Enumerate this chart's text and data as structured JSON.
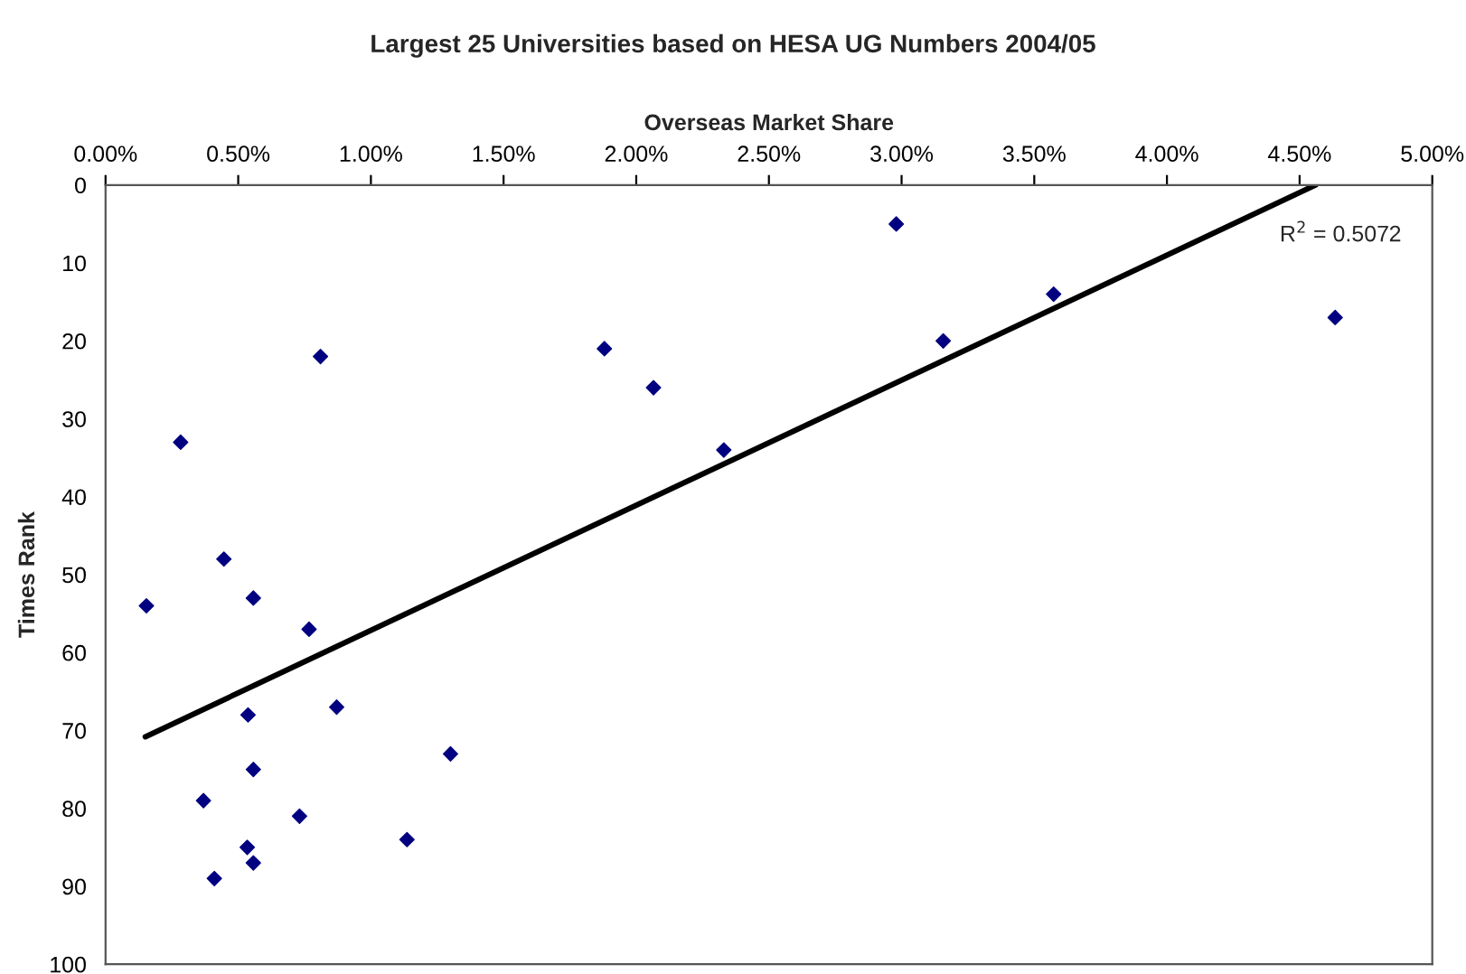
{
  "chart_data": {
    "type": "scatter",
    "title": "Largest 25 Universities based on HESA UG Numbers 2004/05",
    "xlabel": "Overseas Market Share",
    "ylabel": "Times Rank",
    "series": [
      {
        "color": "#000080",
        "marker": "diamond",
        "x": [
          0.81,
          0.283,
          0.446,
          0.154,
          0.557,
          0.767,
          0.537,
          0.871,
          1.3,
          0.557,
          0.369,
          0.731,
          1.136,
          0.534,
          0.557,
          0.41,
          1.88,
          2.065,
          2.33,
          2.98,
          3.157,
          3.573,
          4.634
        ],
        "values": [
          22,
          33,
          48,
          54,
          53,
          57,
          68,
          67,
          73,
          75,
          79,
          81,
          84,
          85,
          87,
          89,
          21,
          26,
          34,
          5,
          20,
          14,
          17
        ]
      },
      {
        "type": "line",
        "color": "#000000",
        "marker": "none",
        "line_style": "solid",
        "x": [
          0.15,
          4.56
        ],
        "values": [
          70.8,
          0
        ]
      }
    ],
    "xlim": [
      0,
      5
    ],
    "xticks": [
      {
        "value": 0,
        "label": "0.00%"
      },
      {
        "value": 0.5,
        "label": "0.50%"
      },
      {
        "value": 1,
        "label": "1.00%"
      },
      {
        "value": 1.5,
        "label": "1.50%"
      },
      {
        "value": 2,
        "label": "2.00%"
      },
      {
        "value": 2.5,
        "label": "2.50%"
      },
      {
        "value": 3,
        "label": "3.00%"
      },
      {
        "value": 3.5,
        "label": "3.50%"
      },
      {
        "value": 4,
        "label": "4.00%"
      },
      {
        "value": 4.5,
        "label": "4.50%"
      },
      {
        "value": 5,
        "label": "5.00%"
      }
    ],
    "ylim": [
      100,
      0
    ],
    "yticks": [
      0,
      10,
      20,
      30,
      40,
      50,
      60,
      70,
      80,
      90,
      100
    ],
    "grid": false,
    "legend": false,
    "annotations": [
      "R$^{2}$ = 0.5072"
    ]
  }
}
